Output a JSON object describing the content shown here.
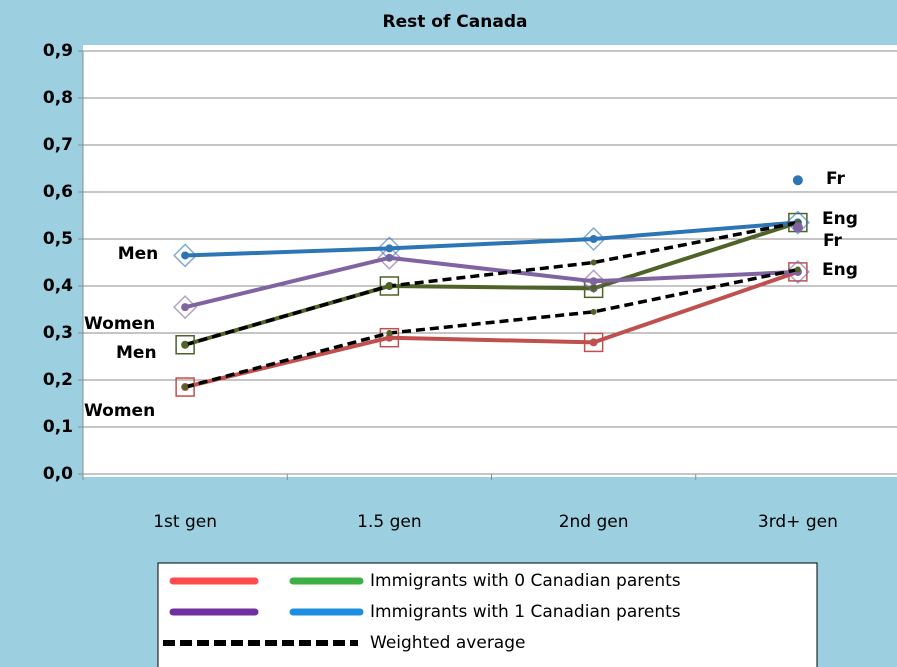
{
  "chart_data": {
    "type": "line",
    "title": "Rest of Canada",
    "categories": [
      "1st gen",
      "1.5 gen",
      "2nd gen",
      "3rd+ gen"
    ],
    "ylim": [
      0,
      0.9
    ],
    "yticks": [
      {
        "value": 0,
        "label": "0,0"
      },
      {
        "value": 0.1,
        "label": "0,1"
      },
      {
        "value": 0.2,
        "label": "0,2"
      },
      {
        "value": 0.3,
        "label": "0,3"
      },
      {
        "value": 0.4,
        "label": "0,4"
      },
      {
        "value": 0.5,
        "label": "0,5"
      },
      {
        "value": 0.6,
        "label": "0,6"
      },
      {
        "value": 0.7,
        "label": "0,7"
      },
      {
        "value": 0.8,
        "label": "0,8"
      },
      {
        "value": 0.9,
        "label": "0,9"
      }
    ],
    "grid": true,
    "series": [
      {
        "color": "#c0504d",
        "marker": "square",
        "values": [
          0.185,
          0.29,
          0.28,
          0.43
        ]
      },
      {
        "color": "#4f6228",
        "marker": "square",
        "values": [
          0.275,
          0.4,
          0.395,
          0.535
        ]
      },
      {
        "color": "#8064a2",
        "marker": "diamond",
        "values": [
          0.355,
          0.46,
          0.41,
          0.43
        ]
      },
      {
        "color": "#2e75b6",
        "marker": "diamond",
        "values": [
          0.465,
          0.48,
          0.5,
          0.535
        ]
      },
      {
        "color": "#000000",
        "dashed": true,
        "values": [
          0.275,
          0.4,
          0.45,
          0.535
        ]
      },
      {
        "color": "#000000",
        "dashed": true,
        "values": [
          0.185,
          0.3,
          0.345,
          0.435
        ]
      },
      {
        "color": "#2e75b6",
        "marker": "dot",
        "values": [
          null,
          null,
          null,
          0.625
        ]
      },
      {
        "color": "#8064a2",
        "marker": "dot",
        "values": [
          null,
          null,
          null,
          0.525
        ]
      }
    ],
    "annotations": [
      "Men",
      "Women",
      "Men",
      "Women",
      "Eng",
      "Fr",
      "Fr",
      "Eng"
    ],
    "legend": [
      {
        "label": "Immigrants with 0 Canadian parents",
        "colors": [
          "#ff4b4b",
          "#3cb043"
        ]
      },
      {
        "label": "Immigrants with 1 Canadian parents",
        "colors": [
          "#7030a0",
          "#1e8fe0"
        ]
      },
      {
        "label": "Weighted average",
        "colors": [
          "#000000"
        ],
        "dashed": true
      }
    ]
  }
}
